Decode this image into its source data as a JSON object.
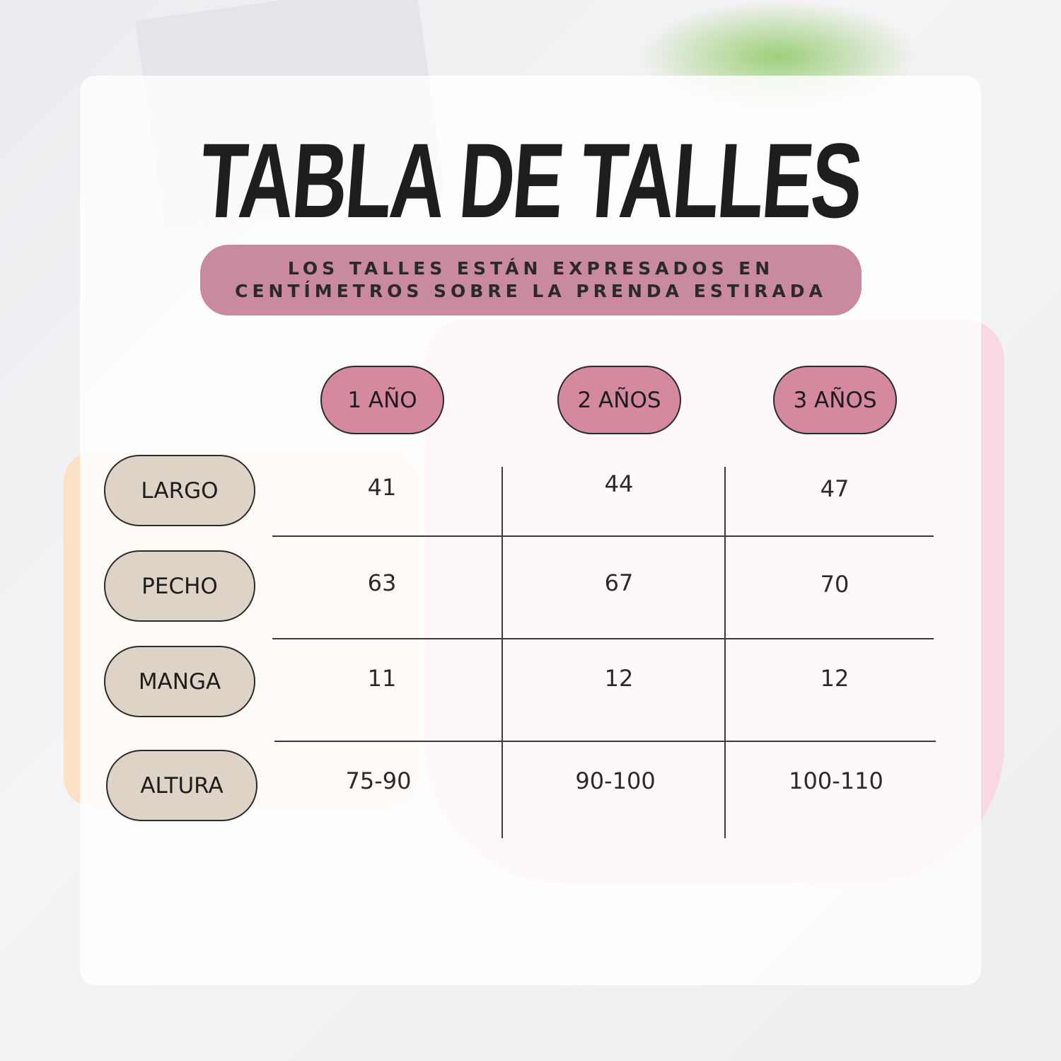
{
  "title": "TABLA DE TALLES",
  "subtitle": {
    "line1": "LOS TALLES ESTÁN EXPRESADOS EN",
    "line2": "CENTÍMETROS SOBRE LA PRENDA ESTIRADA"
  },
  "colors": {
    "banner": "#c98a9f",
    "column_pill": "#d4899f",
    "row_pill": "#ddd3c6"
  },
  "table": {
    "columns": [
      "1 AÑO",
      "2 AÑOS",
      "3 AÑOS"
    ],
    "rows": [
      {
        "label": "LARGO",
        "values": [
          "41",
          "44",
          "47"
        ]
      },
      {
        "label": "PECHO",
        "values": [
          "63",
          "67",
          "70"
        ]
      },
      {
        "label": "MANGA",
        "values": [
          "11",
          "12",
          "12"
        ]
      },
      {
        "label": "ALTURA",
        "values": [
          "75-90",
          "90-100",
          "100-110"
        ]
      }
    ]
  }
}
